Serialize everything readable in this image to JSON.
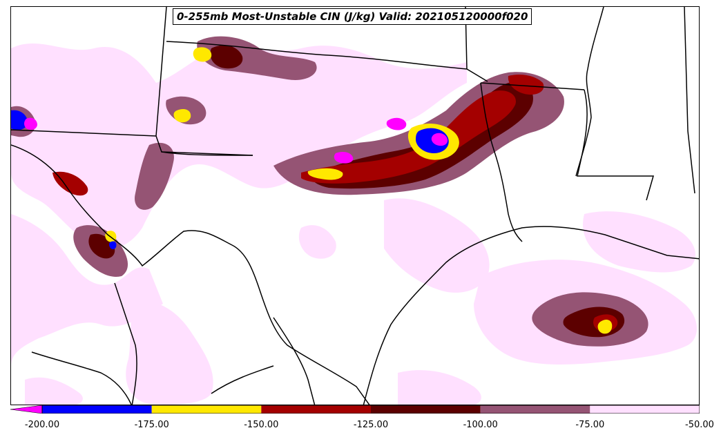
{
  "title": "0-255mb Most-Unstable CIN (J/kg) Valid: 202105120000f020",
  "colorbar": {
    "extend": "min",
    "min_arrow_color": "#ff00ff",
    "bins": [
      {
        "from": -200,
        "to": -175,
        "color": "#0000ff"
      },
      {
        "from": -175,
        "to": -150,
        "color": "#ffe800"
      },
      {
        "from": -150,
        "to": -125,
        "color": "#a40000"
      },
      {
        "from": -125,
        "to": -100,
        "color": "#5c0000"
      },
      {
        "from": -100,
        "to": -75,
        "color": "#955474"
      },
      {
        "from": -75,
        "to": -50,
        "color": "#ffe0ff"
      }
    ],
    "tick_labels": [
      "-200.00",
      "-175.00",
      "-150.00",
      "-125.00",
      "-100.00",
      "-75.00",
      "-50.00"
    ]
  },
  "colors": {
    "below_min": "#ff00ff",
    "lt_neg175": "#0000ff",
    "lt_neg150": "#ffe800",
    "lt_neg125": "#a40000",
    "lt_neg100": "#5c0000",
    "lt_neg75": "#955474",
    "lt_neg50": "#ffe0ff",
    "boundaries": "#000000"
  }
}
